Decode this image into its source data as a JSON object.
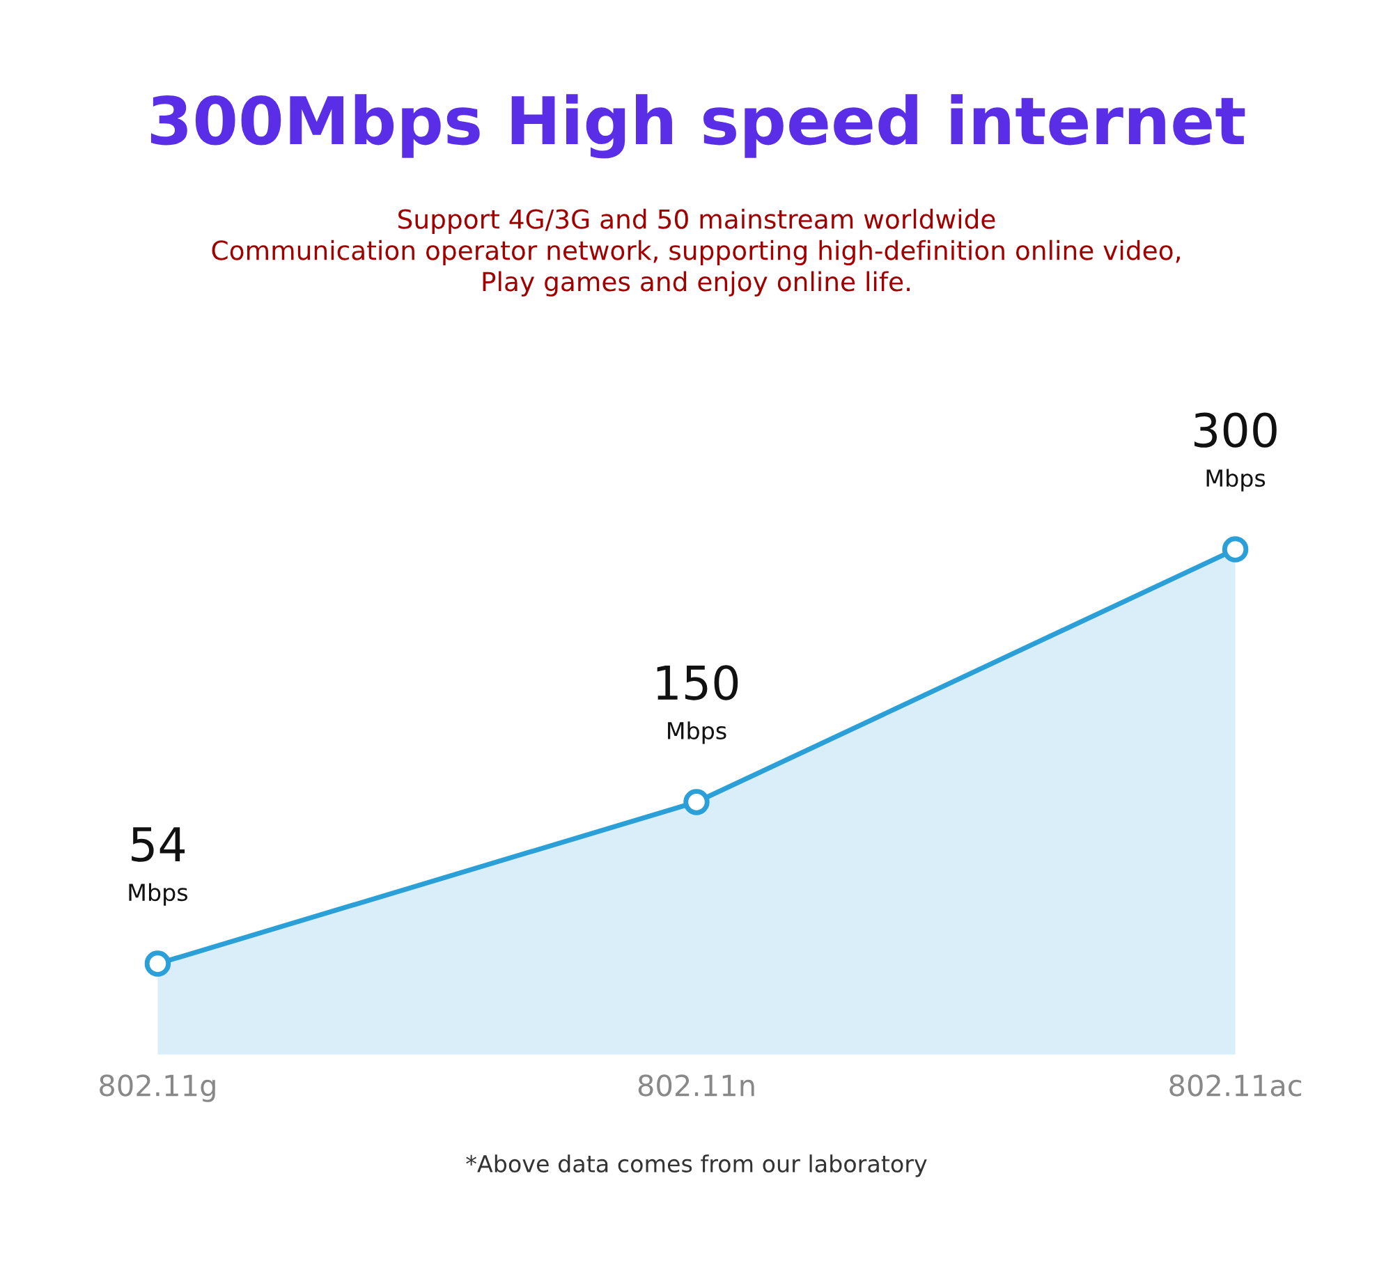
{
  "chart_data": {
    "type": "area",
    "title": "300Mbps High speed internet",
    "subtitle": "Support 4G/3G and 50 mainstream worldwide\nCommunication operator network, supporting high-definition online video,\nPlay games and enjoy online life.",
    "categories": [
      "802.11g",
      "802.11n",
      "802.11ac"
    ],
    "series": [
      {
        "color": "#2a9fd8",
        "values": [
          54,
          150,
          300
        ],
        "value_labels": [
          "54\nMbps",
          "150\nMbps",
          "300\nMbps"
        ]
      }
    ],
    "marker": "circle",
    "grid": false,
    "legend": false,
    "annotations": [
      "*Above data comes from our laboratory"
    ]
  }
}
